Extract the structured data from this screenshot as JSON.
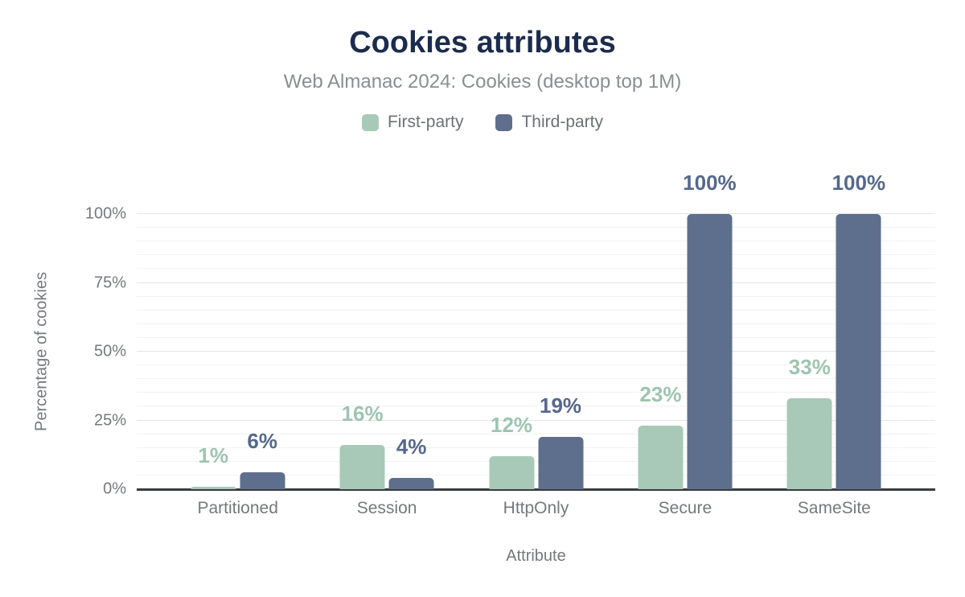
{
  "header": {
    "title": "Cookies attributes",
    "subtitle": "Web Almanac 2024: Cookies (desktop top 1M)"
  },
  "colors": {
    "title": "#1b2c4e",
    "subtitle": "#8a8e92",
    "axis_text": "#75787c",
    "axis_line": "#3a3b3e",
    "grid_major": "#e4e4e7",
    "grid_minor": "#f2f2f4",
    "first_party": "#a8c9b8",
    "first_party_label": "#9ec4b0",
    "third_party": "#5d6f8d",
    "third_party_label": "#55688d"
  },
  "chart_data": {
    "type": "bar",
    "title": "Cookies attributes",
    "subtitle": "Web Almanac 2024: Cookies (desktop top 1M)",
    "categories": [
      "Partitioned",
      "Session",
      "HttpOnly",
      "Secure",
      "SameSite"
    ],
    "series": [
      {
        "name": "First-party",
        "color": "#a8c9b8",
        "label_color": "#9ec4b0",
        "values": [
          1,
          16,
          12,
          23,
          33
        ],
        "labels": [
          "1%",
          "16%",
          "12%",
          "23%",
          "33%"
        ]
      },
      {
        "name": "Third-party",
        "color": "#5d6f8d",
        "label_color": "#55688d",
        "values": [
          6,
          4,
          19,
          100,
          100
        ],
        "labels": [
          "6%",
          "4%",
          "19%",
          "100%",
          "100%"
        ]
      }
    ],
    "xlabel": "Attribute",
    "ylabel": "Percentage of cookies",
    "ylim": [
      0,
      100
    ],
    "yticks": [
      0,
      25,
      50,
      75,
      100
    ],
    "ytick_labels": [
      "0%",
      "25%",
      "50%",
      "75%",
      "100%"
    ],
    "minor_tick_interval": 5,
    "grid": true,
    "legend_position": "top"
  }
}
